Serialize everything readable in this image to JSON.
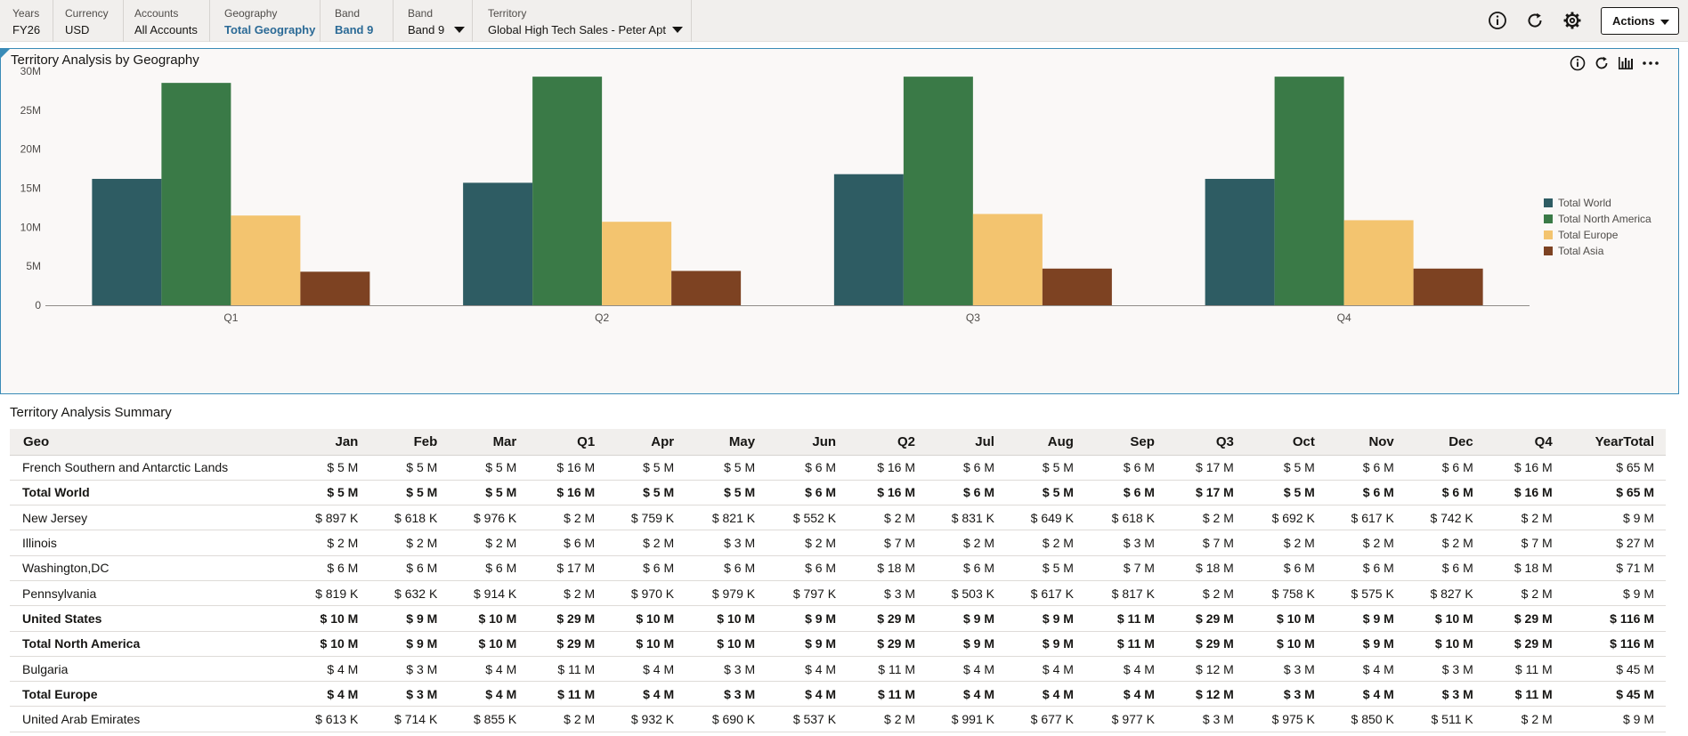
{
  "pov": [
    {
      "label": "Years",
      "value": "FY26",
      "link": false,
      "dropdown": false
    },
    {
      "label": "Currency",
      "value": "USD",
      "link": false,
      "dropdown": false
    },
    {
      "label": "Accounts",
      "value": "All Accounts",
      "link": false,
      "dropdown": false
    },
    {
      "label": "Geography",
      "value": "Total Geography",
      "link": true,
      "dropdown": false
    },
    {
      "label": "Band",
      "value": "Band 9",
      "link": true,
      "dropdown": false
    },
    {
      "label": "Band",
      "value": "Band 9",
      "link": false,
      "dropdown": true
    },
    {
      "label": "Territory",
      "value": "Global High Tech Sales - Peter Apt",
      "link": false,
      "dropdown": true
    }
  ],
  "toolbar": {
    "actions_label": "Actions",
    "icons": [
      "info-icon",
      "refresh-icon",
      "settings-gear-icon"
    ]
  },
  "chart_panel": {
    "title": "Territory Analysis by Geography",
    "icons": [
      "info-icon",
      "refresh-icon",
      "chart-type-icon",
      "more-icon"
    ]
  },
  "colors": {
    "total_world": "#2e5c63",
    "total_north_america": "#3a7a47",
    "total_europe": "#f3c46f",
    "total_asia": "#7d4222",
    "link": "#2b6a96",
    "accent": "#3a8bb7"
  },
  "chart_data": {
    "type": "bar",
    "title": "",
    "xlabel": "",
    "ylabel": "",
    "categories": [
      "Q1",
      "Q2",
      "Q3",
      "Q4"
    ],
    "ylim": [
      0,
      30
    ],
    "yticks": [
      "0",
      "5M",
      "10M",
      "15M",
      "20M",
      "25M",
      "30M"
    ],
    "grid": false,
    "legend_position": "right",
    "series": [
      {
        "name": "Total World",
        "color": "#2e5c63",
        "values": [
          16.2,
          15.7,
          16.8,
          16.2
        ]
      },
      {
        "name": "Total North America",
        "color": "#3a7a47",
        "values": [
          28.5,
          29.3,
          29.3,
          29.3
        ]
      },
      {
        "name": "Total Europe",
        "color": "#f3c46f",
        "values": [
          11.5,
          10.7,
          11.7,
          10.9
        ]
      },
      {
        "name": "Total Asia",
        "color": "#7d4222",
        "values": [
          4.3,
          4.4,
          4.7,
          4.7
        ]
      }
    ]
  },
  "table": {
    "title": "Territory Analysis Summary",
    "columns": [
      "Geo",
      "Jan",
      "Feb",
      "Mar",
      "Q1",
      "Apr",
      "May",
      "Jun",
      "Q2",
      "Jul",
      "Aug",
      "Sep",
      "Q3",
      "Oct",
      "Nov",
      "Dec",
      "Q4",
      "YearTotal"
    ],
    "rows": [
      {
        "bold": false,
        "cells": [
          "French Southern and Antarctic Lands",
          "$ 5 M",
          "$ 5 M",
          "$ 5 M",
          "$ 16 M",
          "$ 5 M",
          "$ 5 M",
          "$ 6 M",
          "$ 16 M",
          "$ 6 M",
          "$ 5 M",
          "$ 6 M",
          "$ 17 M",
          "$ 5 M",
          "$ 6 M",
          "$ 6 M",
          "$ 16 M",
          "$ 65 M"
        ]
      },
      {
        "bold": true,
        "cells": [
          "Total World",
          "$ 5 M",
          "$ 5 M",
          "$ 5 M",
          "$ 16 M",
          "$ 5 M",
          "$ 5 M",
          "$ 6 M",
          "$ 16 M",
          "$ 6 M",
          "$ 5 M",
          "$ 6 M",
          "$ 17 M",
          "$ 5 M",
          "$ 6 M",
          "$ 6 M",
          "$ 16 M",
          "$ 65 M"
        ]
      },
      {
        "bold": false,
        "cells": [
          "New Jersey",
          "$ 897 K",
          "$ 618 K",
          "$ 976 K",
          "$ 2 M",
          "$ 759 K",
          "$ 821 K",
          "$ 552 K",
          "$ 2 M",
          "$ 831 K",
          "$ 649 K",
          "$ 618 K",
          "$ 2 M",
          "$ 692 K",
          "$ 617 K",
          "$ 742 K",
          "$ 2 M",
          "$ 9 M"
        ]
      },
      {
        "bold": false,
        "cells": [
          "Illinois",
          "$ 2 M",
          "$ 2 M",
          "$ 2 M",
          "$ 6 M",
          "$ 2 M",
          "$ 3 M",
          "$ 2 M",
          "$ 7 M",
          "$ 2 M",
          "$ 2 M",
          "$ 3 M",
          "$ 7 M",
          "$ 2 M",
          "$ 2 M",
          "$ 2 M",
          "$ 7 M",
          "$ 27 M"
        ]
      },
      {
        "bold": false,
        "cells": [
          "Washington,DC",
          "$ 6 M",
          "$ 6 M",
          "$ 6 M",
          "$ 17 M",
          "$ 6 M",
          "$ 6 M",
          "$ 6 M",
          "$ 18 M",
          "$ 6 M",
          "$ 5 M",
          "$ 7 M",
          "$ 18 M",
          "$ 6 M",
          "$ 6 M",
          "$ 6 M",
          "$ 18 M",
          "$ 71 M"
        ]
      },
      {
        "bold": false,
        "cells": [
          "Pennsylvania",
          "$ 819 K",
          "$ 632 K",
          "$ 914 K",
          "$ 2 M",
          "$ 970 K",
          "$ 979 K",
          "$ 797 K",
          "$ 3 M",
          "$ 503 K",
          "$ 617 K",
          "$ 817 K",
          "$ 2 M",
          "$ 758 K",
          "$ 575 K",
          "$ 827 K",
          "$ 2 M",
          "$ 9 M"
        ]
      },
      {
        "bold": true,
        "cells": [
          "United States",
          "$ 10 M",
          "$ 9 M",
          "$ 10 M",
          "$ 29 M",
          "$ 10 M",
          "$ 10 M",
          "$ 9 M",
          "$ 29 M",
          "$ 9 M",
          "$ 9 M",
          "$ 11 M",
          "$ 29 M",
          "$ 10 M",
          "$ 9 M",
          "$ 10 M",
          "$ 29 M",
          "$ 116 M"
        ]
      },
      {
        "bold": true,
        "cells": [
          "Total North America",
          "$ 10 M",
          "$ 9 M",
          "$ 10 M",
          "$ 29 M",
          "$ 10 M",
          "$ 10 M",
          "$ 9 M",
          "$ 29 M",
          "$ 9 M",
          "$ 9 M",
          "$ 11 M",
          "$ 29 M",
          "$ 10 M",
          "$ 9 M",
          "$ 10 M",
          "$ 29 M",
          "$ 116 M"
        ]
      },
      {
        "bold": false,
        "cells": [
          "Bulgaria",
          "$ 4 M",
          "$ 3 M",
          "$ 4 M",
          "$ 11 M",
          "$ 4 M",
          "$ 3 M",
          "$ 4 M",
          "$ 11 M",
          "$ 4 M",
          "$ 4 M",
          "$ 4 M",
          "$ 12 M",
          "$ 3 M",
          "$ 4 M",
          "$ 3 M",
          "$ 11 M",
          "$ 45 M"
        ]
      },
      {
        "bold": true,
        "cells": [
          "Total Europe",
          "$ 4 M",
          "$ 3 M",
          "$ 4 M",
          "$ 11 M",
          "$ 4 M",
          "$ 3 M",
          "$ 4 M",
          "$ 11 M",
          "$ 4 M",
          "$ 4 M",
          "$ 4 M",
          "$ 12 M",
          "$ 3 M",
          "$ 4 M",
          "$ 3 M",
          "$ 11 M",
          "$ 45 M"
        ]
      },
      {
        "bold": false,
        "cells": [
          "United Arab Emirates",
          "$ 613 K",
          "$ 714 K",
          "$ 855 K",
          "$ 2 M",
          "$ 932 K",
          "$ 690 K",
          "$ 537 K",
          "$ 2 M",
          "$ 991 K",
          "$ 677 K",
          "$ 977 K",
          "$ 3 M",
          "$ 975 K",
          "$ 850 K",
          "$ 511 K",
          "$ 2 M",
          "$ 9 M"
        ]
      }
    ]
  }
}
